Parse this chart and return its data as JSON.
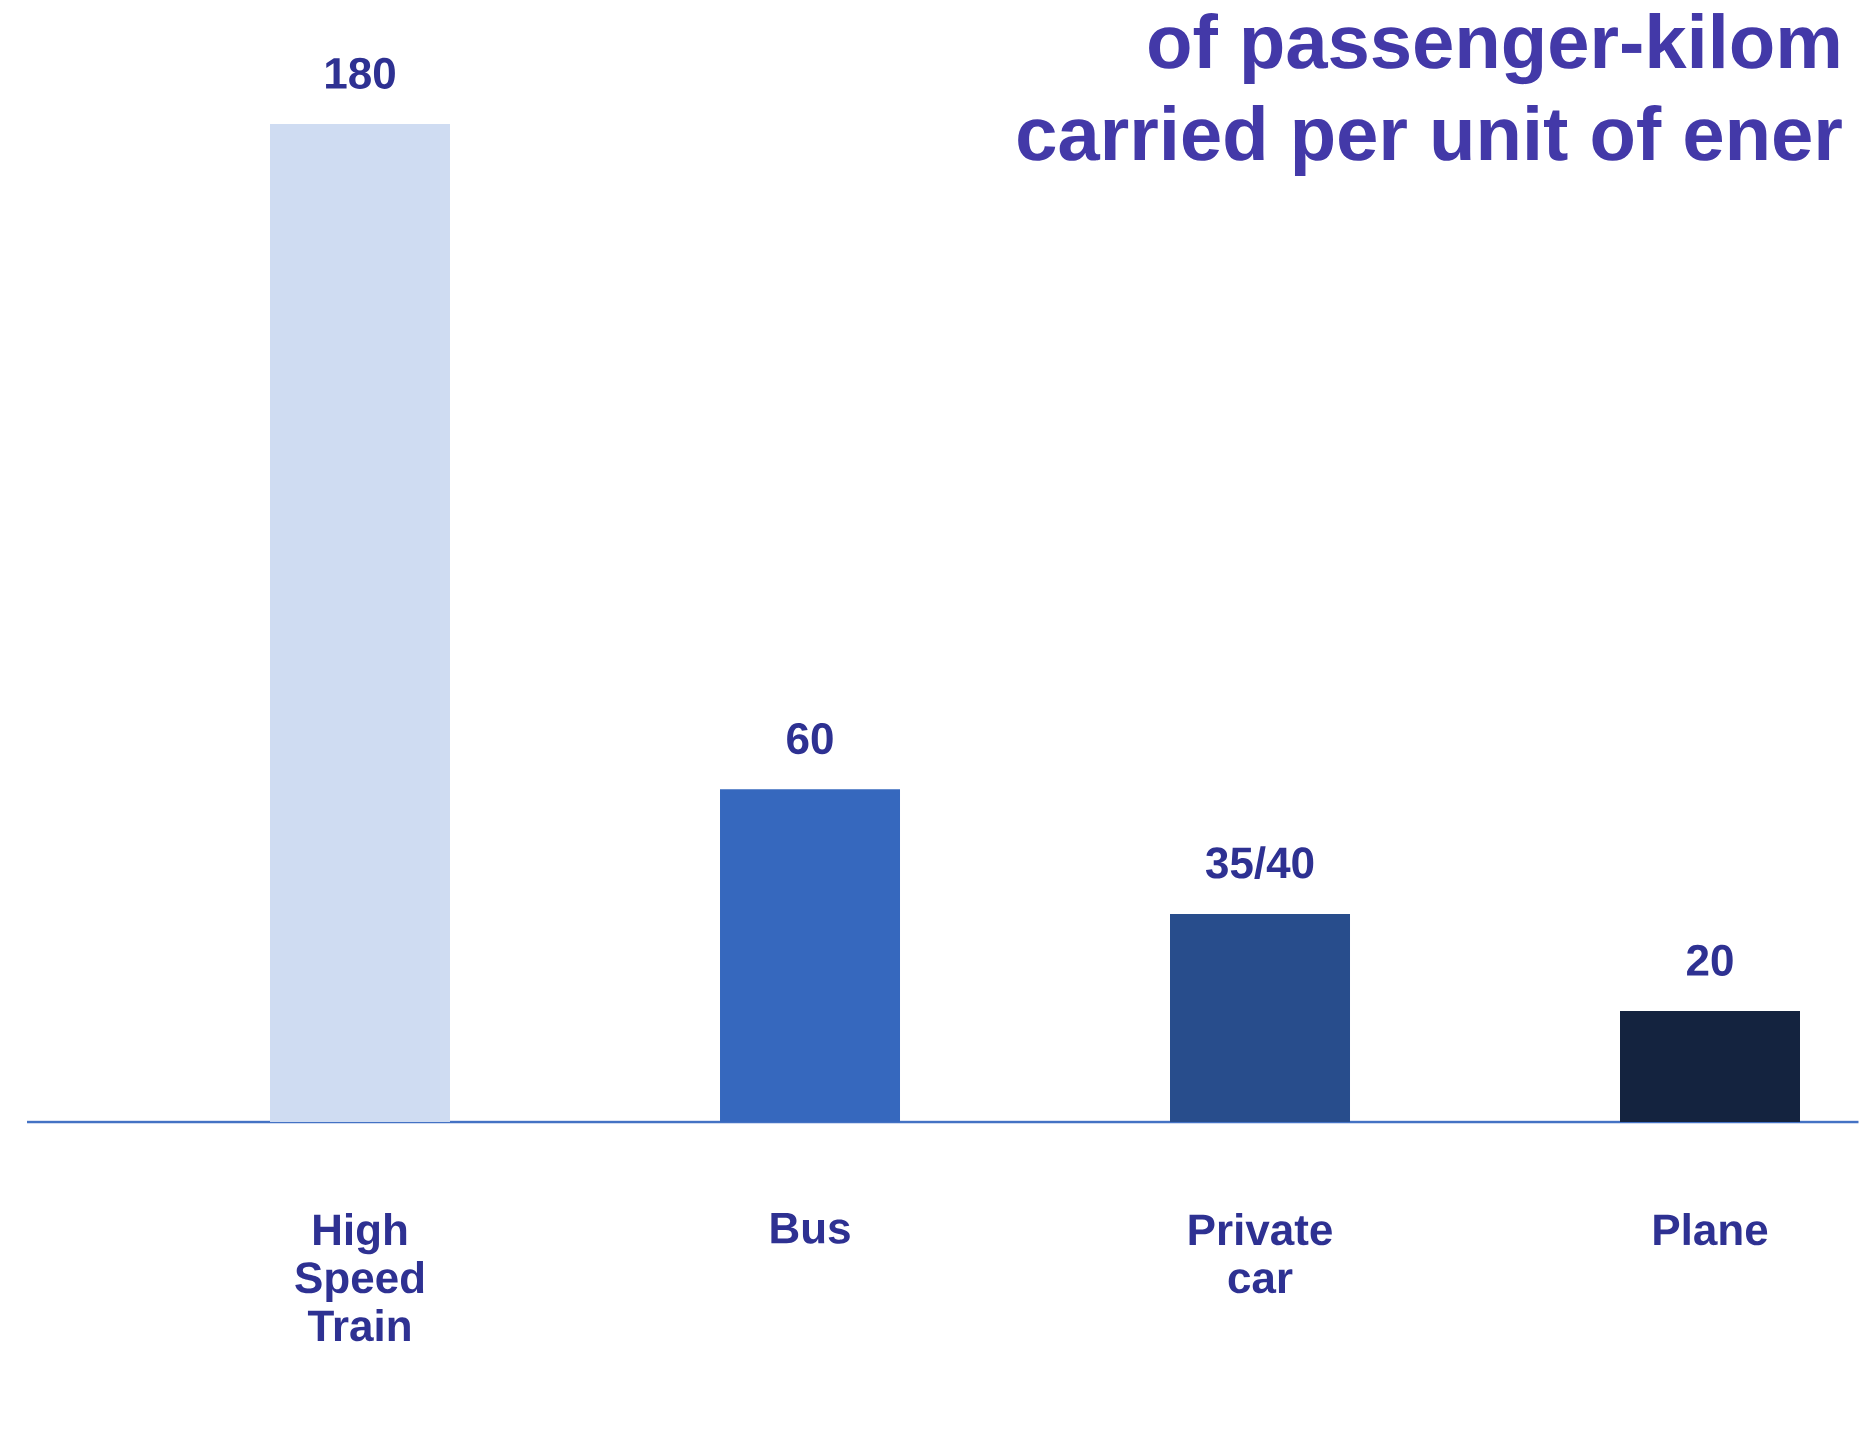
{
  "chart_data": {
    "type": "bar",
    "title": "of passenger-kilom",
    "subtitle": "carried per unit of ener",
    "categories": [
      "High Speed Train",
      "Bus",
      "Private car",
      "Plane"
    ],
    "values": [
      180,
      60,
      37.5,
      20
    ],
    "value_labels": [
      "180",
      "60",
      "35/40",
      "20"
    ],
    "colors": [
      "#cfdcf2",
      "#3668be",
      "#284d8c",
      "#14233f"
    ]
  }
}
